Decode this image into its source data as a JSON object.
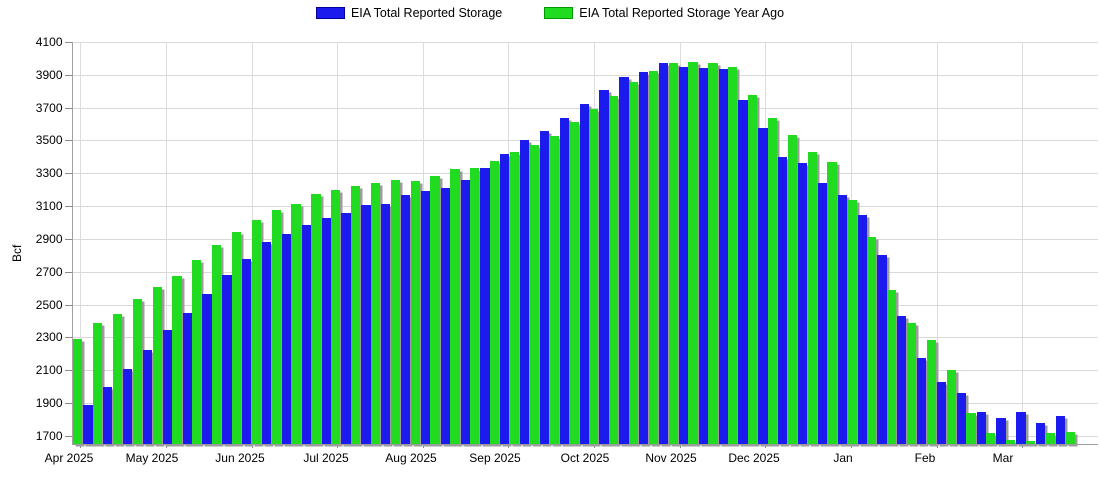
{
  "y_axis": {
    "title": "Bcf"
  },
  "chart_data": {
    "type": "bar",
    "title": "",
    "ylabel": "Bcf",
    "ylim": [
      1650,
      4100
    ],
    "yticks": [
      1700,
      1900,
      2100,
      2300,
      2500,
      2700,
      2900,
      3100,
      3300,
      3500,
      3700,
      3900,
      4100
    ],
    "grid": true,
    "legend_position": "top",
    "categories": [
      "Apr 2025",
      "May 2025",
      "Jun 2025",
      "Jul 2025",
      "Aug 2025",
      "Sep 2025",
      "Oct 2025",
      "Nov 2025",
      "Dec 2025",
      "Jan",
      "Feb",
      "Mar"
    ],
    "x_unit": "week",
    "series": [
      {
        "name": "EIA Total Reported Storage",
        "color": "#1b1bee",
        "values": [
          null,
          1890,
          1995,
          2110,
          2220,
          2345,
          2450,
          2565,
          2680,
          2780,
          2880,
          2930,
          2985,
          3030,
          3060,
          3105,
          3115,
          3170,
          3190,
          3210,
          3260,
          3330,
          3420,
          3505,
          3555,
          3635,
          3720,
          3805,
          3885,
          3920,
          3970,
          3950,
          3940,
          3935,
          3745,
          3575,
          3400,
          3365,
          3240,
          3170,
          3045,
          2800,
          2430,
          2175,
          2030,
          1960,
          1845,
          1810,
          1845,
          1775,
          1820
        ]
      },
      {
        "name": "EIA Total Reported Storage Year Ago",
        "color": "#21db21",
        "values": [
          2290,
          2385,
          2445,
          2535,
          2605,
          2675,
          2770,
          2860,
          2940,
          3015,
          3075,
          3115,
          3175,
          3195,
          3220,
          3240,
          3260,
          3255,
          3285,
          3325,
          3335,
          3375,
          3430,
          3475,
          3525,
          3610,
          3690,
          3770,
          3855,
          3925,
          3975,
          3980,
          3975,
          3950,
          3775,
          3635,
          3535,
          3430,
          3370,
          3135,
          2910,
          2590,
          2390,
          2285,
          2100,
          1840,
          1720,
          1675,
          1670,
          1715,
          1725
        ]
      }
    ]
  }
}
